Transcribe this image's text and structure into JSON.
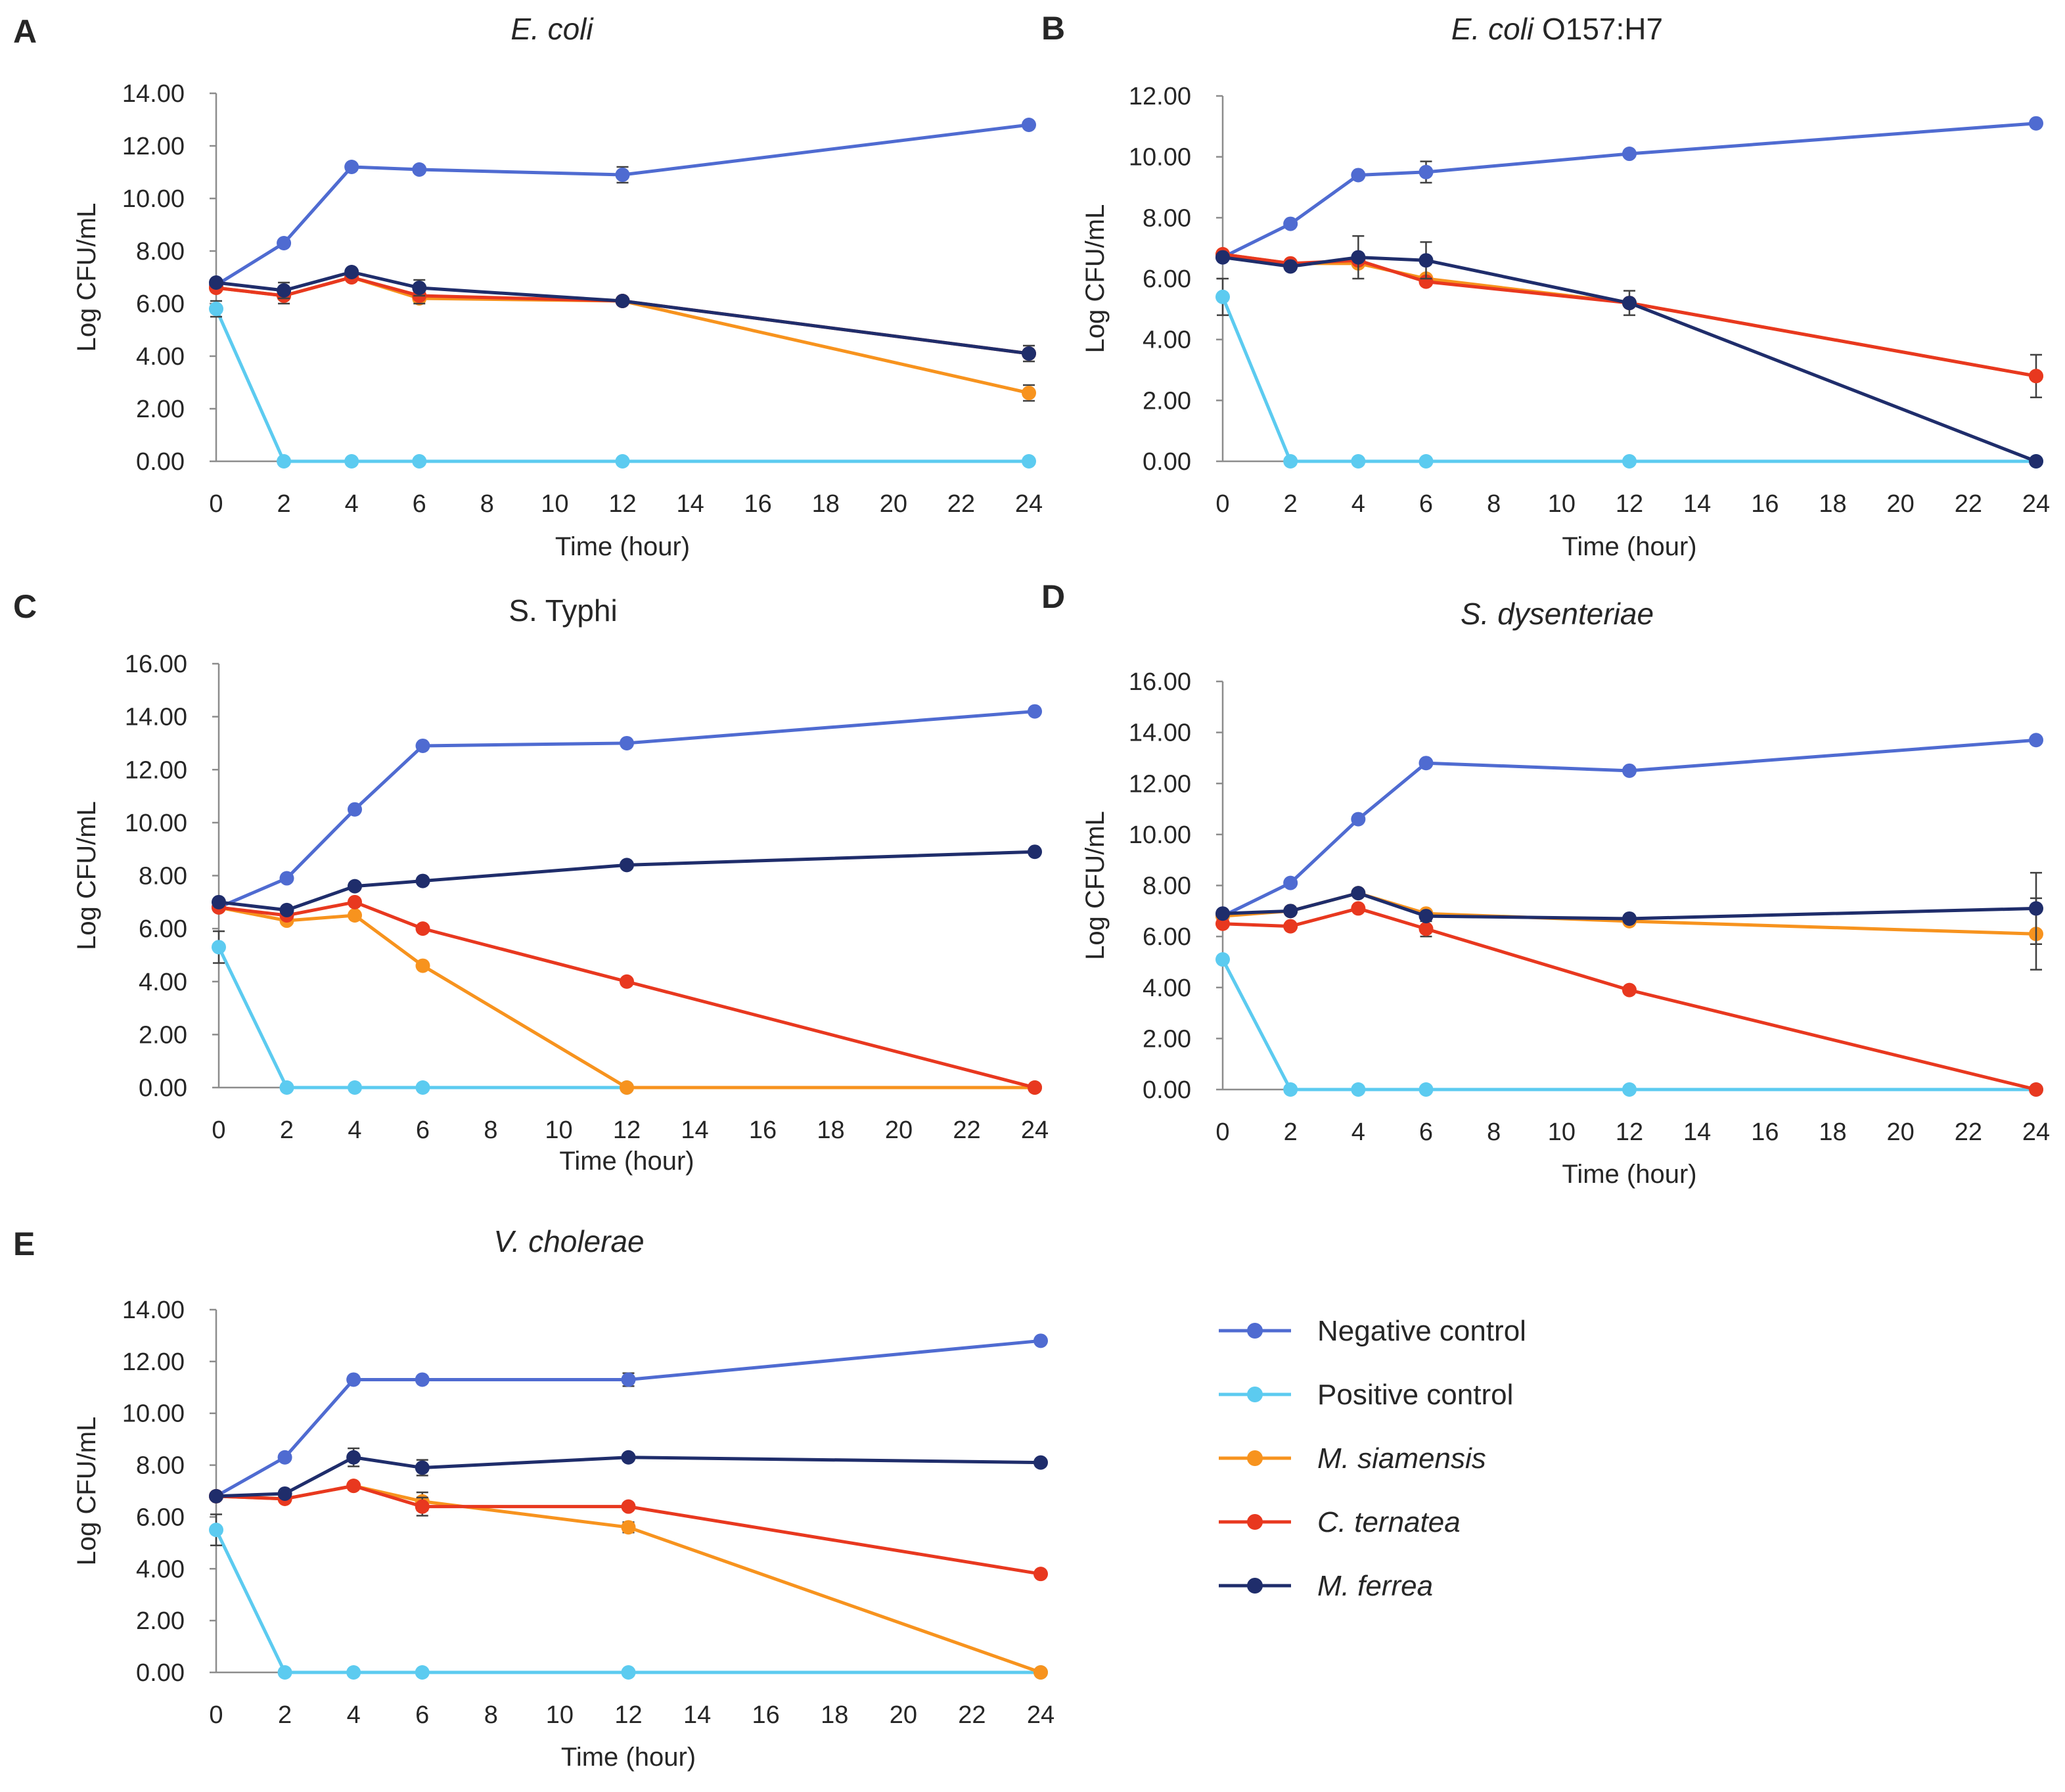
{
  "colors": {
    "negative": "#4f6bd1",
    "positive": "#5ccbf0",
    "siamensis": "#f7931e",
    "ternatea": "#e8381f",
    "ferrea": "#1f2d6b",
    "axis": "#8c8c8c",
    "errorbar": "#404040"
  },
  "legend": {
    "items": [
      {
        "key": "negative",
        "label": "Negative control",
        "italic": false
      },
      {
        "key": "positive",
        "label": "Positive control",
        "italic": false
      },
      {
        "key": "siamensis",
        "label": "M. siamensis",
        "italic": true
      },
      {
        "key": "ternatea",
        "label": "C. ternatea",
        "italic": true
      },
      {
        "key": "ferrea",
        "label": "M. ferrea",
        "italic": true
      }
    ]
  },
  "chart_data": [
    {
      "panel": "A",
      "type": "line",
      "title": "E. coli",
      "title_italic_part": "E. coli",
      "title_plain_part": "",
      "xlabel": "Time (hour)",
      "ylabel": "Log CFU/mL",
      "x": [
        0,
        2,
        4,
        6,
        12,
        24
      ],
      "xticks": [
        0,
        2,
        4,
        6,
        8,
        10,
        12,
        14,
        16,
        18,
        20,
        22,
        24
      ],
      "xlim": [
        0,
        24
      ],
      "ylim": [
        0,
        14
      ],
      "yticks": [
        0,
        2,
        4,
        6,
        8,
        10,
        12,
        14
      ],
      "ytick_labels": [
        "0.00",
        "2.00",
        "4.00",
        "6.00",
        "8.00",
        "10.00",
        "12.00",
        "14.00"
      ],
      "series": [
        {
          "key": "negative",
          "name": "Negative control",
          "values": [
            6.7,
            8.3,
            11.2,
            11.1,
            10.9,
            12.8
          ],
          "errors": [
            0,
            0,
            0,
            0,
            0.3,
            0
          ]
        },
        {
          "key": "positive",
          "name": "Positive control",
          "values": [
            5.8,
            0,
            0,
            0,
            0,
            0
          ],
          "errors": [
            0.3,
            0,
            0,
            0,
            0,
            0
          ]
        },
        {
          "key": "siamensis",
          "name": "M. siamensis",
          "values": [
            6.6,
            6.3,
            7.0,
            6.2,
            6.1,
            2.6
          ],
          "errors": [
            0,
            0,
            0,
            0,
            0,
            0.3
          ]
        },
        {
          "key": "ternatea",
          "name": "C. ternatea",
          "values": [
            6.6,
            6.3,
            7.0,
            6.3,
            6.1,
            4.1
          ],
          "errors": [
            0,
            0.3,
            0,
            0.3,
            0,
            0
          ]
        },
        {
          "key": "ferrea",
          "name": "M. ferrea",
          "values": [
            6.8,
            6.5,
            7.2,
            6.6,
            6.1,
            4.1
          ],
          "errors": [
            0,
            0.3,
            0,
            0.3,
            0,
            0.3
          ]
        }
      ]
    },
    {
      "panel": "B",
      "type": "line",
      "title": "E. coli O157:H7",
      "title_italic_part": "E. coli",
      "title_plain_part": " O157:H7",
      "xlabel": "Time (hour)",
      "ylabel": "Log CFU/mL",
      "x": [
        0,
        2,
        4,
        6,
        12,
        24
      ],
      "xticks": [
        0,
        2,
        4,
        6,
        8,
        10,
        12,
        14,
        16,
        18,
        20,
        22,
        24
      ],
      "xlim": [
        0,
        24
      ],
      "ylim": [
        0,
        12
      ],
      "yticks": [
        0,
        2,
        4,
        6,
        8,
        10,
        12
      ],
      "ytick_labels": [
        "0.00",
        "2.00",
        "4.00",
        "6.00",
        "8.00",
        "10.00",
        "12.00"
      ],
      "series": [
        {
          "key": "negative",
          "name": "Negative control",
          "values": [
            6.7,
            7.8,
            9.4,
            9.5,
            10.1,
            11.1
          ],
          "errors": [
            0,
            0,
            0,
            0.35,
            0,
            0
          ]
        },
        {
          "key": "positive",
          "name": "Positive control",
          "values": [
            5.4,
            0,
            0,
            0,
            0,
            0
          ],
          "errors": [
            0.6,
            0,
            0,
            0,
            0,
            0
          ]
        },
        {
          "key": "siamensis",
          "name": "M. siamensis",
          "values": [
            6.8,
            6.5,
            6.5,
            6.0,
            5.2,
            2.8
          ],
          "errors": [
            0,
            0,
            0,
            0,
            0,
            0
          ]
        },
        {
          "key": "ternatea",
          "name": "C. ternatea",
          "values": [
            6.8,
            6.5,
            6.6,
            5.9,
            5.2,
            2.8
          ],
          "errors": [
            0,
            0,
            0,
            0,
            0,
            0.7
          ]
        },
        {
          "key": "ferrea",
          "name": "M. ferrea",
          "values": [
            6.7,
            6.4,
            6.7,
            6.6,
            5.2,
            0
          ],
          "errors": [
            0,
            0,
            0.7,
            0.6,
            0.4,
            0
          ]
        }
      ]
    },
    {
      "panel": "C",
      "type": "line",
      "title": "S. Typhi",
      "title_italic_part": "",
      "title_plain_part": "S. Typhi",
      "xlabel": "Time (hour)",
      "ylabel": "Log CFU/mL",
      "x": [
        0,
        2,
        4,
        6,
        12,
        24
      ],
      "xticks": [
        0,
        2,
        4,
        6,
        8,
        10,
        12,
        14,
        16,
        18,
        20,
        22,
        24
      ],
      "xlim": [
        0,
        24
      ],
      "ylim": [
        0,
        16
      ],
      "yticks": [
        0,
        2,
        4,
        6,
        8,
        10,
        12,
        14,
        16
      ],
      "ytick_labels": [
        "0.00",
        "2.00",
        "4.00",
        "6.00",
        "8.00",
        "10.00",
        "12.00",
        "14.00",
        "16.00"
      ],
      "series": [
        {
          "key": "negative",
          "name": "Negative control",
          "values": [
            6.8,
            7.9,
            10.5,
            12.9,
            13.0,
            14.2
          ],
          "errors": [
            0,
            0,
            0,
            0,
            0,
            0
          ]
        },
        {
          "key": "positive",
          "name": "Positive control",
          "values": [
            5.3,
            0,
            0,
            0,
            0,
            0
          ],
          "errors": [
            0.6,
            0,
            0,
            0,
            0,
            0
          ]
        },
        {
          "key": "siamensis",
          "name": "M. siamensis",
          "values": [
            6.8,
            6.3,
            6.5,
            4.6,
            0,
            0
          ],
          "errors": [
            0,
            0,
            0,
            0,
            0,
            0
          ]
        },
        {
          "key": "ternatea",
          "name": "C. ternatea",
          "values": [
            6.8,
            6.5,
            7.0,
            6.0,
            4.0,
            0
          ],
          "errors": [
            0,
            0,
            0,
            0,
            0,
            0
          ]
        },
        {
          "key": "ferrea",
          "name": "M. ferrea",
          "values": [
            7.0,
            6.7,
            7.6,
            7.8,
            8.4,
            8.9
          ],
          "errors": [
            0,
            0,
            0,
            0,
            0,
            0
          ]
        }
      ]
    },
    {
      "panel": "D",
      "type": "line",
      "title": "S. dysenteriae",
      "title_italic_part": "S. dysenteriae",
      "title_plain_part": "",
      "xlabel": "Time (hour)",
      "ylabel": "Log CFU/mL",
      "x": [
        0,
        2,
        4,
        6,
        12,
        24
      ],
      "xticks": [
        0,
        2,
        4,
        6,
        8,
        10,
        12,
        14,
        16,
        18,
        20,
        22,
        24
      ],
      "xlim": [
        0,
        24
      ],
      "ylim": [
        0,
        16
      ],
      "yticks": [
        0,
        2,
        4,
        6,
        8,
        10,
        12,
        14,
        16
      ],
      "ytick_labels": [
        "0.00",
        "2.00",
        "4.00",
        "6.00",
        "8.00",
        "10.00",
        "12.00",
        "14.00",
        "16.00"
      ],
      "series": [
        {
          "key": "negative",
          "name": "Negative control",
          "values": [
            6.8,
            8.1,
            10.6,
            12.8,
            12.5,
            13.7
          ],
          "errors": [
            0,
            0,
            0,
            0,
            0,
            0
          ]
        },
        {
          "key": "positive",
          "name": "Positive control",
          "values": [
            5.1,
            0,
            0,
            0,
            0,
            0
          ],
          "errors": [
            0,
            0,
            0,
            0,
            0,
            0
          ]
        },
        {
          "key": "siamensis",
          "name": "M. siamensis",
          "values": [
            6.8,
            7.0,
            7.7,
            6.9,
            6.6,
            6.1
          ],
          "errors": [
            0,
            0,
            0,
            0,
            0,
            1.4
          ]
        },
        {
          "key": "ternatea",
          "name": "C. ternatea",
          "values": [
            6.5,
            6.4,
            7.1,
            6.3,
            3.9,
            0
          ],
          "errors": [
            0,
            0,
            0,
            0.3,
            0,
            0
          ]
        },
        {
          "key": "ferrea",
          "name": "M. ferrea",
          "values": [
            6.9,
            7.0,
            7.7,
            6.8,
            6.7,
            7.1
          ],
          "errors": [
            0,
            0,
            0,
            0,
            0,
            1.4
          ]
        }
      ]
    },
    {
      "panel": "E",
      "type": "line",
      "title": "V. cholerae",
      "title_italic_part": "V. cholerae",
      "title_plain_part": "",
      "xlabel": "Time (hour)",
      "ylabel": "Log CFU/mL",
      "x": [
        0,
        2,
        4,
        6,
        12,
        24
      ],
      "xticks": [
        0,
        2,
        4,
        6,
        8,
        10,
        12,
        14,
        16,
        18,
        20,
        22,
        24
      ],
      "xlim": [
        0,
        24
      ],
      "ylim": [
        0,
        14
      ],
      "yticks": [
        0,
        2,
        4,
        6,
        8,
        10,
        12,
        14
      ],
      "ytick_labels": [
        "0.00",
        "2.00",
        "4.00",
        "6.00",
        "8.00",
        "10.00",
        "12.00",
        "14.00"
      ],
      "series": [
        {
          "key": "negative",
          "name": "Negative control",
          "values": [
            6.8,
            8.3,
            11.3,
            11.3,
            11.3,
            12.8
          ],
          "errors": [
            0,
            0,
            0,
            0,
            0.25,
            0
          ]
        },
        {
          "key": "positive",
          "name": "Positive control",
          "values": [
            5.5,
            0,
            0,
            0,
            0,
            0
          ],
          "errors": [
            0.6,
            0,
            0,
            0,
            0,
            0
          ]
        },
        {
          "key": "siamensis",
          "name": "M. siamensis",
          "values": [
            6.8,
            6.7,
            7.2,
            6.6,
            5.6,
            0
          ],
          "errors": [
            0,
            0,
            0,
            0.35,
            0.2,
            0
          ]
        },
        {
          "key": "ternatea",
          "name": "C. ternatea",
          "values": [
            6.8,
            6.7,
            7.2,
            6.4,
            6.4,
            3.8
          ],
          "errors": [
            0,
            0,
            0,
            0.35,
            0,
            0
          ]
        },
        {
          "key": "ferrea",
          "name": "M. ferrea",
          "values": [
            6.8,
            6.9,
            8.3,
            7.9,
            8.3,
            8.1
          ],
          "errors": [
            0,
            0,
            0.35,
            0.3,
            0,
            0
          ]
        }
      ]
    }
  ]
}
